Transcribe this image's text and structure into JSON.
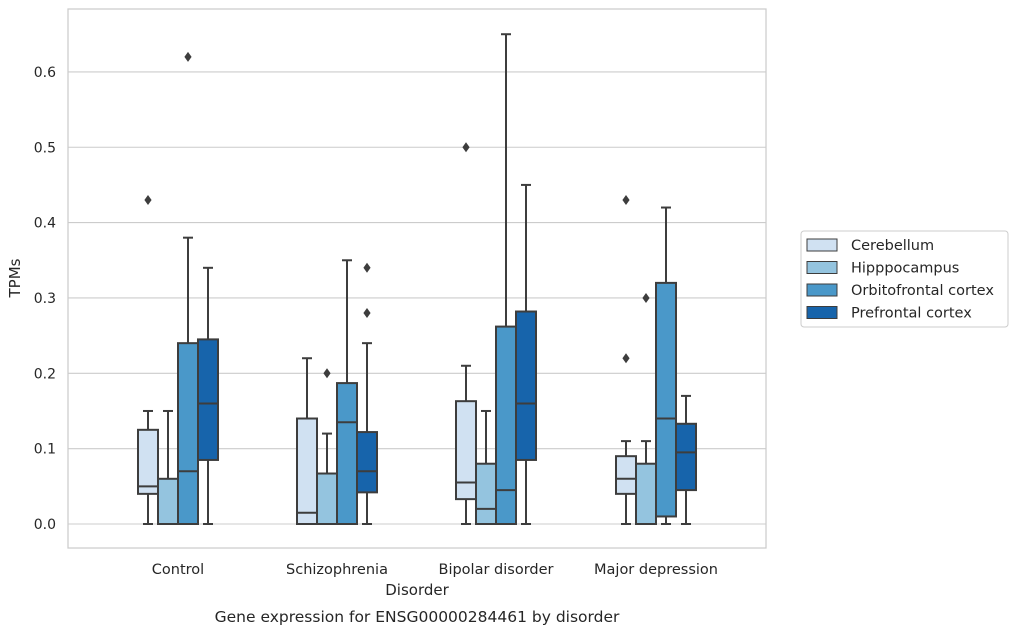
{
  "chart_data": {
    "type": "boxplot",
    "title": "",
    "caption": "Gene expression for ENSG00000284461 by disorder",
    "xlabel": "Disorder",
    "ylabel": "TPMs",
    "ylim": [
      -0.032,
      0.685
    ],
    "yticks": [
      0.0,
      0.1,
      0.2,
      0.3,
      0.4,
      0.5,
      0.6
    ],
    "ytick_labels": [
      "0.0",
      "0.1",
      "0.2",
      "0.3",
      "0.4",
      "0.5",
      "0.6"
    ],
    "grid": "horizontal",
    "legend_position": "right, outside plot",
    "categories": [
      "Control",
      "Schizophrenia",
      "Bipolar disorder",
      "Major depression"
    ],
    "series": [
      {
        "name": "Cerebellum",
        "color": "#d0e1f2",
        "boxes": [
          {
            "whisker_low": 0.0,
            "q1": 0.04,
            "median": 0.05,
            "q3": 0.125,
            "whisker_high": 0.15,
            "outliers": [
              0.43
            ]
          },
          {
            "whisker_low": 0.0,
            "q1": 0.0,
            "median": 0.015,
            "q3": 0.14,
            "whisker_high": 0.22,
            "outliers": []
          },
          {
            "whisker_low": 0.0,
            "q1": 0.033,
            "median": 0.055,
            "q3": 0.163,
            "whisker_high": 0.21,
            "outliers": [
              0.5
            ]
          },
          {
            "whisker_low": 0.0,
            "q1": 0.04,
            "median": 0.06,
            "q3": 0.09,
            "whisker_high": 0.11,
            "outliers": [
              0.22,
              0.43
            ]
          }
        ]
      },
      {
        "name": "Hipppocampus",
        "color": "#94c4df",
        "boxes": [
          {
            "whisker_low": 0.0,
            "q1": 0.0,
            "median": 0.0,
            "q3": 0.06,
            "whisker_high": 0.15,
            "outliers": []
          },
          {
            "whisker_low": 0.0,
            "q1": 0.0,
            "median": 0.0,
            "q3": 0.067,
            "whisker_high": 0.12,
            "outliers": [
              0.2
            ]
          },
          {
            "whisker_low": 0.0,
            "q1": 0.0,
            "median": 0.02,
            "q3": 0.08,
            "whisker_high": 0.15,
            "outliers": []
          },
          {
            "whisker_low": 0.0,
            "q1": 0.0,
            "median": 0.0,
            "q3": 0.08,
            "whisker_high": 0.11,
            "outliers": [
              0.3
            ]
          }
        ]
      },
      {
        "name": "Orbitofrontal cortex",
        "color": "#4a98c9",
        "boxes": [
          {
            "whisker_low": 0.0,
            "q1": 0.0,
            "median": 0.07,
            "q3": 0.24,
            "whisker_high": 0.38,
            "outliers": [
              0.62
            ]
          },
          {
            "whisker_low": 0.0,
            "q1": 0.0,
            "median": 0.135,
            "q3": 0.187,
            "whisker_high": 0.35,
            "outliers": []
          },
          {
            "whisker_low": 0.0,
            "q1": 0.0,
            "median": 0.045,
            "q3": 0.262,
            "whisker_high": 0.65,
            "outliers": []
          },
          {
            "whisker_low": 0.0,
            "q1": 0.01,
            "median": 0.14,
            "q3": 0.32,
            "whisker_high": 0.42,
            "outliers": []
          }
        ]
      },
      {
        "name": "Prefrontal cortex",
        "color": "#1764ab",
        "boxes": [
          {
            "whisker_low": 0.0,
            "q1": 0.085,
            "median": 0.16,
            "q3": 0.245,
            "whisker_high": 0.34,
            "outliers": []
          },
          {
            "whisker_low": 0.0,
            "q1": 0.042,
            "median": 0.07,
            "q3": 0.122,
            "whisker_high": 0.24,
            "outliers": [
              0.28,
              0.34
            ]
          },
          {
            "whisker_low": 0.0,
            "q1": 0.085,
            "median": 0.16,
            "q3": 0.282,
            "whisker_high": 0.45,
            "outliers": []
          },
          {
            "whisker_low": 0.0,
            "q1": 0.045,
            "median": 0.095,
            "q3": 0.133,
            "whisker_high": 0.17,
            "outliers": []
          }
        ]
      }
    ],
    "colors": {
      "grid": "#cccccc",
      "frame": "#cccccc",
      "box_edge": "#3d3d3d",
      "text": "#262626"
    }
  }
}
